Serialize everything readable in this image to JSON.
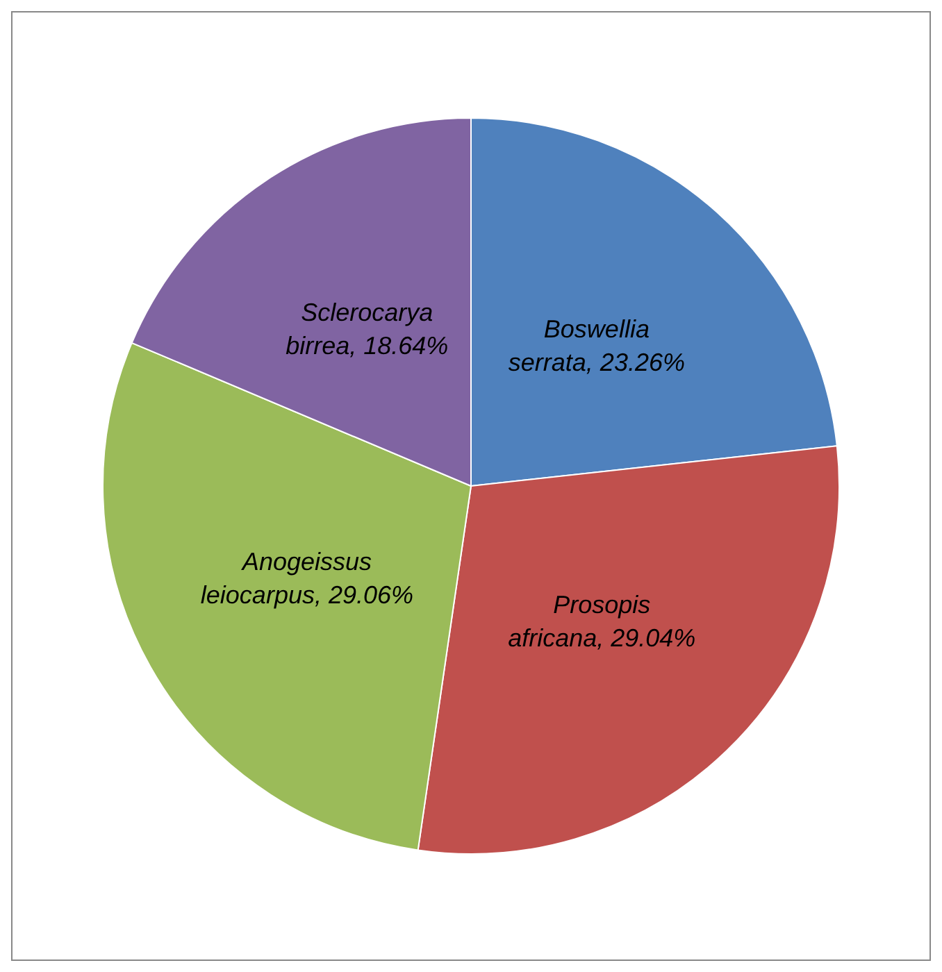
{
  "chart_data": {
    "type": "pie",
    "categories": [
      "Boswellia serrata",
      "Prosopis africana",
      "Anogeissus leiocarpus",
      "Sclerocarya birrea"
    ],
    "values": [
      23.26,
      29.04,
      29.06,
      18.64
    ],
    "colors": [
      "#4f81bd",
      "#c0504d",
      "#9bbb59",
      "#8064a2"
    ],
    "value_labels": [
      "23.26%",
      "29.04%",
      "29.06%",
      "18.64%"
    ],
    "legend": false
  }
}
